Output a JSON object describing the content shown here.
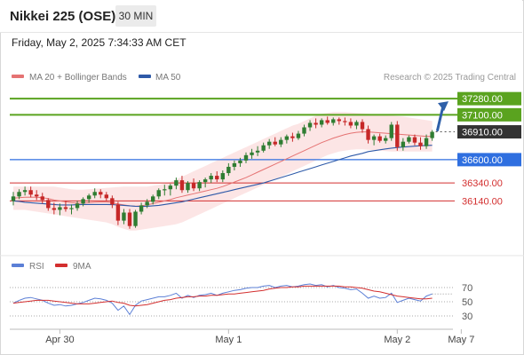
{
  "header": {
    "title": "Nikkei 225 (OSE)",
    "timeframe": "30 MIN"
  },
  "datetime": "Friday, May 2, 2025 7:34:33 AM CET",
  "legend": {
    "bollinger": "MA 20 + Bollinger Bands",
    "ma50": "MA 50"
  },
  "copyright": "Research © 2025 Trading Central",
  "rsi_legend": {
    "rsi": "RSI",
    "ma": "9MA"
  },
  "colors": {
    "up": "#2f7d32",
    "down": "#c62828",
    "ma20": "#e57373",
    "band": "#fbe0e0",
    "ma50": "#2e5aa8",
    "target": "#5aa31f",
    "pivot": "#2f6fe0",
    "support": "#d32f2f",
    "current": "#333333",
    "rsi": "#5b7fd6",
    "rsi_ma": "#d32f2f",
    "arrow": "#2e5fa8"
  },
  "chart_data": {
    "type": "candlestick",
    "title": "Nikkei 225 (OSE)",
    "price_range": [
      35550,
      37430
    ],
    "levels": [
      {
        "value": 37280,
        "label": "37280.00",
        "kind": "target"
      },
      {
        "value": 37100,
        "label": "37100.00",
        "kind": "target"
      },
      {
        "value": 36910,
        "label": "36910.00",
        "kind": "current"
      },
      {
        "value": 36600,
        "label": "36600.00",
        "kind": "pivot"
      },
      {
        "value": 36340,
        "label": "36340.00",
        "kind": "support"
      },
      {
        "value": 36140,
        "label": "36140.00",
        "kind": "support"
      }
    ],
    "x_labels": [
      "Apr 30",
      "May 1",
      "May 2",
      "May 7"
    ],
    "x_label_index": [
      8,
      37,
      66,
      77
    ],
    "candles": [
      [
        36140,
        36240,
        36090,
        36190
      ],
      [
        36190,
        36270,
        36160,
        36240
      ],
      [
        36240,
        36300,
        36200,
        36260
      ],
      [
        36260,
        36300,
        36180,
        36210
      ],
      [
        36210,
        36260,
        36150,
        36190
      ],
      [
        36190,
        36230,
        36110,
        36150
      ],
      [
        36150,
        36170,
        36030,
        36060
      ],
      [
        36060,
        36120,
        35990,
        36040
      ],
      [
        36040,
        36110,
        35980,
        36070
      ],
      [
        36070,
        36140,
        36020,
        36050
      ],
      [
        36050,
        36100,
        35990,
        36060
      ],
      [
        36060,
        36140,
        36030,
        36110
      ],
      [
        36110,
        36180,
        36080,
        36160
      ],
      [
        36160,
        36220,
        36120,
        36200
      ],
      [
        36200,
        36280,
        36170,
        36240
      ],
      [
        36240,
        36270,
        36170,
        36210
      ],
      [
        36210,
        36240,
        36140,
        36170
      ],
      [
        36170,
        36200,
        36060,
        36100
      ],
      [
        36100,
        36130,
        35870,
        35920
      ],
      [
        35920,
        36050,
        35880,
        36010
      ],
      [
        36010,
        36050,
        35830,
        35860
      ],
      [
        35860,
        36040,
        35840,
        36020
      ],
      [
        36020,
        36120,
        35990,
        36090
      ],
      [
        36090,
        36160,
        36060,
        36130
      ],
      [
        36130,
        36210,
        36100,
        36190
      ],
      [
        36190,
        36280,
        36160,
        36260
      ],
      [
        36260,
        36320,
        36200,
        36270
      ],
      [
        36270,
        36330,
        36200,
        36310
      ],
      [
        36310,
        36400,
        36270,
        36370
      ],
      [
        36370,
        36420,
        36230,
        36260
      ],
      [
        36260,
        36360,
        36230,
        36340
      ],
      [
        36340,
        36390,
        36250,
        36280
      ],
      [
        36280,
        36370,
        36250,
        36350
      ],
      [
        36350,
        36400,
        36290,
        36380
      ],
      [
        36380,
        36450,
        36340,
        36420
      ],
      [
        36420,
        36470,
        36350,
        36380
      ],
      [
        36380,
        36480,
        36350,
        36450
      ],
      [
        36450,
        36560,
        36420,
        36520
      ],
      [
        36520,
        36590,
        36480,
        36560
      ],
      [
        36560,
        36620,
        36520,
        36590
      ],
      [
        36590,
        36680,
        36560,
        36650
      ],
      [
        36650,
        36720,
        36610,
        36680
      ],
      [
        36680,
        36750,
        36640,
        36700
      ],
      [
        36700,
        36790,
        36680,
        36760
      ],
      [
        36760,
        36830,
        36720,
        36800
      ],
      [
        36800,
        36850,
        36750,
        36770
      ],
      [
        36770,
        36850,
        36740,
        36820
      ],
      [
        36820,
        36880,
        36780,
        36860
      ],
      [
        36860,
        36900,
        36800,
        36840
      ],
      [
        36840,
        36920,
        36820,
        36890
      ],
      [
        36890,
        36990,
        36860,
        36960
      ],
      [
        36960,
        37040,
        36920,
        37010
      ],
      [
        37010,
        37060,
        36950,
        36990
      ],
      [
        36990,
        37060,
        36960,
        37040
      ],
      [
        37040,
        37080,
        36990,
        37010
      ],
      [
        37010,
        37070,
        36980,
        37050
      ],
      [
        37050,
        37070,
        36990,
        37030
      ],
      [
        37030,
        37070,
        36980,
        37020
      ],
      [
        37020,
        37060,
        36950,
        36980
      ],
      [
        36980,
        37040,
        36940,
        37020
      ],
      [
        37020,
        37050,
        36900,
        36940
      ],
      [
        36940,
        36980,
        36780,
        36820
      ],
      [
        36820,
        36880,
        36760,
        36860
      ],
      [
        36860,
        36890,
        36790,
        36810
      ],
      [
        36810,
        36870,
        36780,
        36840
      ],
      [
        36840,
        37020,
        36810,
        36990
      ],
      [
        36990,
        37030,
        36700,
        36740
      ],
      [
        36740,
        36840,
        36700,
        36800
      ],
      [
        36800,
        36870,
        36780,
        36850
      ],
      [
        36850,
        36880,
        36760,
        36790
      ],
      [
        36790,
        36850,
        36710,
        36750
      ],
      [
        36750,
        36880,
        36720,
        36840
      ],
      [
        36840,
        36930,
        36810,
        36910
      ]
    ],
    "ma20": [
      36170,
      36175,
      36180,
      36182,
      36180,
      36175,
      36165,
      36150,
      36140,
      36130,
      36120,
      36115,
      36115,
      36120,
      36125,
      36128,
      36128,
      36120,
      36105,
      36095,
      36085,
      36080,
      36085,
      36095,
      36110,
      36125,
      36140,
      36155,
      36175,
      36190,
      36205,
      36220,
      36235,
      36250,
      36265,
      36280,
      36300,
      36325,
      36350,
      36375,
      36400,
      36430,
      36460,
      36490,
      36520,
      36550,
      36580,
      36610,
      36640,
      36670,
      36700,
      36730,
      36760,
      36790,
      36815,
      36840,
      36860,
      36880,
      36895,
      36905,
      36910,
      36910,
      36905,
      36900,
      36895,
      36890,
      36885,
      36880,
      36875,
      36870,
      36865,
      36860,
      36860
    ],
    "band_upper": [
      36300,
      36300,
      36300,
      36300,
      36300,
      36300,
      36300,
      36300,
      36290,
      36280,
      36270,
      36265,
      36265,
      36270,
      36275,
      36280,
      36285,
      36290,
      36295,
      36300,
      36300,
      36300,
      36300,
      36300,
      36310,
      36320,
      36335,
      36350,
      36380,
      36410,
      36440,
      36470,
      36500,
      36530,
      36560,
      36590,
      36620,
      36650,
      36680,
      36710,
      36740,
      36770,
      36800,
      36830,
      36860,
      36890,
      36920,
      36950,
      36980,
      37000,
      37030,
      37060,
      37090,
      37110,
      37120,
      37130,
      37130,
      37130,
      37125,
      37120,
      37115,
      37110,
      37105,
      37100,
      37095,
      37090,
      37085,
      37080,
      37070,
      37060,
      37050,
      37040,
      37030
    ],
    "band_lower": [
      36040,
      36040,
      36040,
      36030,
      36020,
      36010,
      36000,
      35990,
      35980,
      35970,
      35960,
      35950,
      35940,
      35930,
      35920,
      35910,
      35900,
      35880,
      35850,
      35830,
      35810,
      35810,
      35820,
      35830,
      35840,
      35850,
      35860,
      35870,
      35880,
      35900,
      35930,
      35960,
      35990,
      36020,
      36050,
      36080,
      36110,
      36140,
      36170,
      36200,
      36230,
      36260,
      36290,
      36320,
      36350,
      36380,
      36410,
      36440,
      36470,
      36500,
      36530,
      36560,
      36590,
      36620,
      36650,
      36670,
      36690,
      36700,
      36710,
      36715,
      36715,
      36710,
      36705,
      36700,
      36695,
      36690,
      36690,
      36690,
      36690,
      36690,
      36690,
      36690,
      36690
    ],
    "ma50": [
      36140,
      36135,
      36125,
      36120,
      36115,
      36110,
      36105,
      36100,
      36095,
      36095,
      36095,
      36098,
      36100,
      36100,
      36100,
      36100,
      36100,
      36098,
      36095,
      36090,
      36085,
      36080,
      36078,
      36080,
      36085,
      36090,
      36100,
      36110,
      36120,
      36130,
      36145,
      36160,
      36175,
      36190,
      36205,
      36220,
      36235,
      36250,
      36265,
      36280,
      36295,
      36310,
      36325,
      36340,
      36360,
      36380,
      36400,
      36420,
      36440,
      36460,
      36480,
      36500,
      36520,
      36540,
      36560,
      36580,
      36600,
      36620,
      36640,
      36655,
      36670,
      36690,
      36700,
      36710,
      36720,
      36728,
      36735,
      36740,
      36745,
      36750,
      36755,
      36758,
      36760
    ],
    "rsi": {
      "levels": [
        70,
        50,
        30
      ],
      "ylim": [
        20,
        80
      ],
      "values": [
        48,
        52,
        55,
        56,
        54,
        52,
        48,
        45,
        46,
        44,
        45,
        47,
        49,
        52,
        55,
        54,
        52,
        48,
        38,
        44,
        32,
        45,
        51,
        53,
        55,
        57,
        57,
        59,
        62,
        55,
        59,
        56,
        59,
        60,
        62,
        59,
        62,
        64,
        66,
        67,
        69,
        70,
        70,
        72,
        73,
        70,
        72,
        73,
        71,
        72,
        74,
        75,
        73,
        74,
        71,
        73,
        70,
        69,
        67,
        68,
        62,
        55,
        58,
        55,
        56,
        62,
        49,
        52,
        55,
        53,
        51,
        58,
        61
      ],
      "ma9": [
        48,
        49,
        50,
        51,
        52,
        52,
        52,
        51,
        50,
        49,
        48,
        47,
        47,
        47,
        48,
        49,
        50,
        51,
        49,
        48,
        45,
        44,
        45,
        46,
        48,
        50,
        52,
        53,
        55,
        56,
        57,
        57,
        58,
        58,
        59,
        59,
        60,
        61,
        61,
        62,
        63,
        64,
        65,
        66,
        68,
        69,
        70,
        70,
        71,
        71,
        72,
        72,
        72,
        72,
        72,
        72,
        72,
        71,
        71,
        70,
        69,
        67,
        65,
        64,
        62,
        60,
        58,
        57,
        56,
        55,
        54,
        54,
        55
      ]
    }
  }
}
